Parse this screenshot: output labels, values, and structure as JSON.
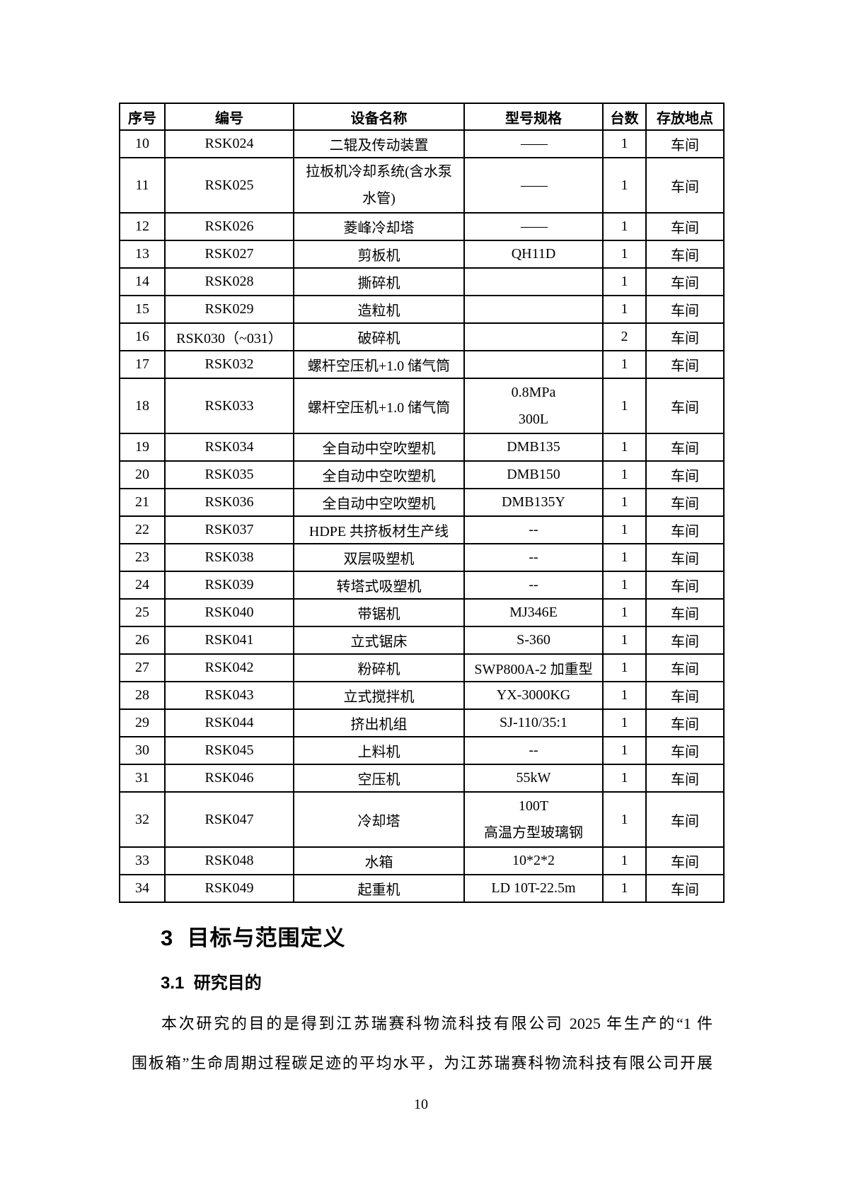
{
  "table": {
    "headers": [
      "序号",
      "编号",
      "设备名称",
      "型号规格",
      "台数",
      "存放地点"
    ],
    "rows": [
      [
        "10",
        "RSK024",
        "二辊及传动装置",
        "——",
        "1",
        "车间"
      ],
      [
        "11",
        "RSK025",
        "拉板机冷却系统(含水泵\n水管)",
        "——",
        "1",
        "车间"
      ],
      [
        "12",
        "RSK026",
        "菱峰冷却塔",
        "——",
        "1",
        "车间"
      ],
      [
        "13",
        "RSK027",
        "剪板机",
        "QH11D",
        "1",
        "车间"
      ],
      [
        "14",
        "RSK028",
        "撕碎机",
        "",
        "1",
        "车间"
      ],
      [
        "15",
        "RSK029",
        "造粒机",
        "",
        "1",
        "车间"
      ],
      [
        "16",
        "RSK030（~031）",
        "破碎机",
        "",
        "2",
        "车间"
      ],
      [
        "17",
        "RSK032",
        "螺杆空压机+1.0 储气筒",
        "",
        "1",
        "车间"
      ],
      [
        "18",
        "RSK033",
        "螺杆空压机+1.0 储气筒",
        "0.8MPa\n300L",
        "1",
        "车间"
      ],
      [
        "19",
        "RSK034",
        "全自动中空吹塑机",
        "DMB135",
        "1",
        "车间"
      ],
      [
        "20",
        "RSK035",
        "全自动中空吹塑机",
        "DMB150",
        "1",
        "车间"
      ],
      [
        "21",
        "RSK036",
        "全自动中空吹塑机",
        "DMB135Y",
        "1",
        "车间"
      ],
      [
        "22",
        "RSK037",
        "HDPE 共挤板材生产线",
        "--",
        "1",
        "车间"
      ],
      [
        "23",
        "RSK038",
        "双层吸塑机",
        "--",
        "1",
        "车间"
      ],
      [
        "24",
        "RSK039",
        "转塔式吸塑机",
        "--",
        "1",
        "车间"
      ],
      [
        "25",
        "RSK040",
        "带锯机",
        "MJ346E",
        "1",
        "车间"
      ],
      [
        "26",
        "RSK041",
        "立式锯床",
        "S-360",
        "1",
        "车间"
      ],
      [
        "27",
        "RSK042",
        "粉碎机",
        "SWP800A-2 加重型",
        "1",
        "车间"
      ],
      [
        "28",
        "RSK043",
        "立式搅拌机",
        "YX-3000KG",
        "1",
        "车间"
      ],
      [
        "29",
        "RSK044",
        "挤出机组",
        "SJ-110/35:1",
        "1",
        "车间"
      ],
      [
        "30",
        "RSK045",
        "上料机",
        "--",
        "1",
        "车间"
      ],
      [
        "31",
        "RSK046",
        "空压机",
        "55kW",
        "1",
        "车间"
      ],
      [
        "32",
        "RSK047",
        "冷却塔",
        "100T\n高温方型玻璃钢",
        "1",
        "车间"
      ],
      [
        "33",
        "RSK048",
        "水箱",
        "10*2*2",
        "1",
        "车间"
      ],
      [
        "34",
        "RSK049",
        "起重机",
        "LD 10T-22.5m",
        "1",
        "车间"
      ]
    ]
  },
  "section": {
    "heading": "3  目标与范围定义",
    "subheading": "3.1  研究目的",
    "para_line1": "本次研究的目的是得到江苏瑞赛科物流科技有限公司 2025 年生产的“1 件",
    "para_line2": "围板箱”生命周期过程碳足迹的平均水平，为江苏瑞赛科物流科技有限公司开展"
  },
  "page_number": "10"
}
